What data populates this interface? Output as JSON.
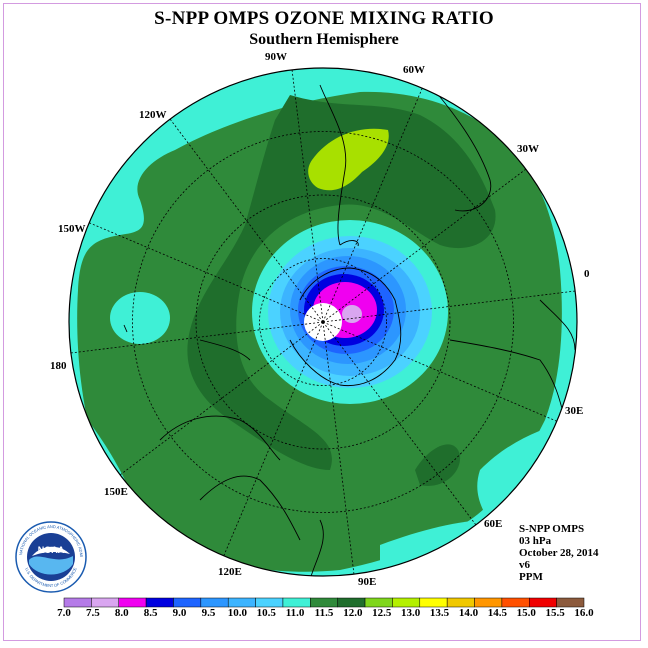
{
  "header": {
    "title": "S-NPP OMPS OZONE MIXING RATIO",
    "subtitle": "Southern Hemisphere"
  },
  "longitude_labels": [
    "90W",
    "60W",
    "30W",
    "0",
    "30E",
    "60E",
    "90E",
    "120E",
    "150E",
    "180",
    "150W",
    "120W"
  ],
  "info": {
    "instrument": "S-NPP OMPS",
    "level": "03 hPa",
    "date": "October 28, 2014",
    "version": "v6",
    "units": "PPM"
  },
  "colorbar": {
    "ticks": [
      "7.0",
      "7.5",
      "8.0",
      "8.5",
      "9.0",
      "9.5",
      "10.0",
      "10.5",
      "11.0",
      "11.5",
      "12.0",
      "12.5",
      "13.0",
      "13.5",
      "14.0",
      "14.5",
      "15.0",
      "15.5",
      "16.0"
    ],
    "colors": [
      "#b57be8",
      "#d9a6f0",
      "#f000f0",
      "#0000e0",
      "#1e64ff",
      "#2c96ff",
      "#3cb4ff",
      "#4bd2ff",
      "#3ff0d6",
      "#2f8a3a",
      "#1f6e2c",
      "#7fd61c",
      "#b4f000",
      "#ffff00",
      "#f0c800",
      "#ff9600",
      "#ff5000",
      "#f00000",
      "#8c5a3c"
    ]
  },
  "logo": {
    "text": "NOAA",
    "ring_text": "NATIONAL OCEANIC AND ATMOSPHERIC ADMINISTRATION",
    "ring_text_bottom": "U.S. DEPARTMENT OF COMMERCE"
  }
}
